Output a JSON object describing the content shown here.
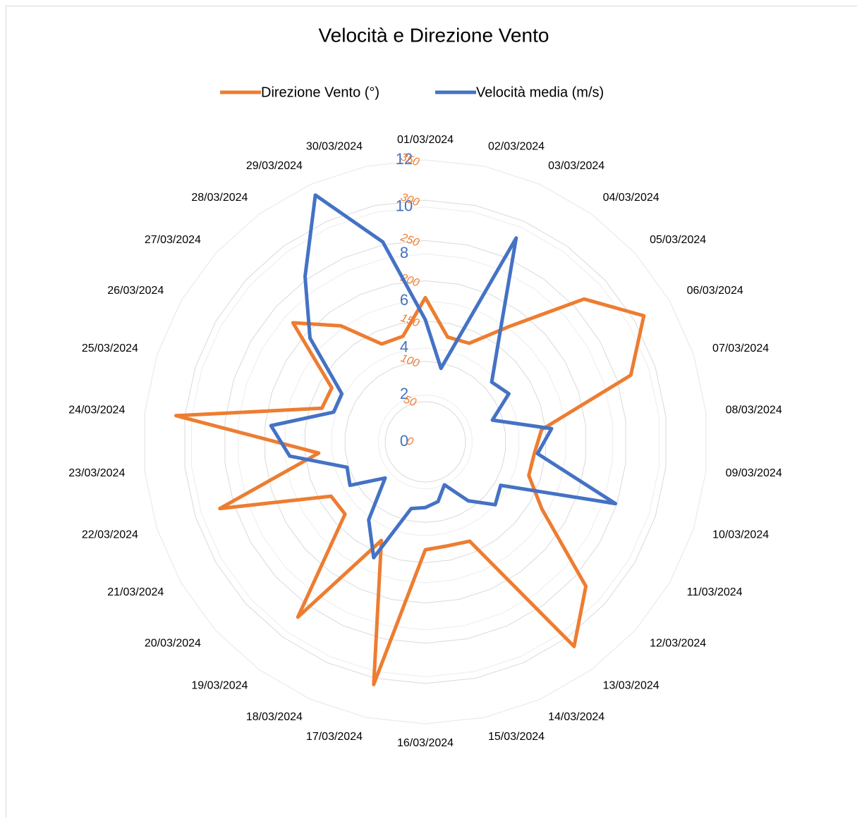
{
  "chart_data": {
    "type": "radar",
    "title": "Velocità e Direzione Vento",
    "categories": [
      "01/03/2024",
      "02/03/2024",
      "03/03/2024",
      "04/03/2024",
      "05/03/2024",
      "06/03/2024",
      "07/03/2024",
      "08/03/2024",
      "09/03/2024",
      "10/03/2024",
      "11/03/2024",
      "12/03/2024",
      "13/03/2024",
      "14/03/2024",
      "15/03/2024",
      "16/03/2024",
      "17/03/2024",
      "18/03/2024",
      "19/03/2024",
      "20/03/2024",
      "21/03/2024",
      "22/03/2024",
      "23/03/2024",
      "24/03/2024",
      "25/03/2024",
      "26/03/2024",
      "27/03/2024",
      "28/03/2024",
      "29/03/2024",
      "30/03/2024"
    ],
    "series": [
      {
        "name": "Direzione Vento  (°)",
        "color": "#ed7d31",
        "values": [
          179,
          133,
          134,
          177,
          265,
          313,
          268,
          145,
          136,
          135,
          167,
          268,
          314,
          135,
          132,
          134,
          308,
          134,
          269,
          134,
          135,
          268,
          133,
          311,
          135,
          134,
          221,
          178,
          133,
          134
        ]
      },
      {
        "name": "Velocità media (m/s)",
        "color": "#4472c4",
        "axis": "y2",
        "values": [
          5.2,
          3.2,
          9.5,
          5.3,
          3.8,
          4.1,
          3.0,
          5.4,
          4.8,
          8.5,
          3.7,
          4.0,
          3.1,
          2.0,
          2.6,
          2.8,
          2.9,
          5.4,
          4.1,
          2.3,
          3.7,
          3.5,
          5.8,
          6.6,
          4.1,
          4.1,
          6.6,
          8.7,
          11.5,
          8.7
        ]
      }
    ],
    "ylim": [
      0,
      350
    ],
    "yticks": [
      0,
      50,
      100,
      150,
      200,
      250,
      300,
      350
    ],
    "y2lim": [
      0,
      12
    ],
    "y2ticks": [
      0,
      2,
      4,
      6,
      8,
      10,
      12
    ],
    "grid": true,
    "legend": "top"
  }
}
